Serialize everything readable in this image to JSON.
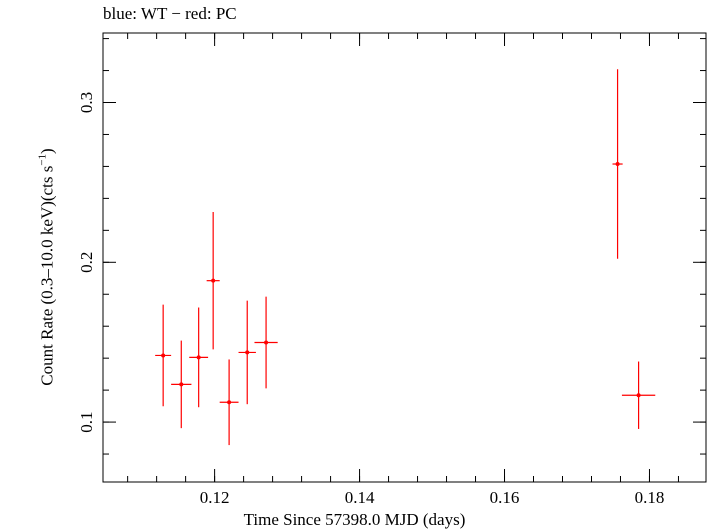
{
  "chart_data": {
    "type": "scatter",
    "title": "blue: WT − red: PC",
    "xlabel": "Time Since 57398.0 MJD (days)",
    "ylabel_main": "Count Rate (0.3–10.0 keV)(cts s",
    "ylabel_sup": "−1",
    "ylabel_end": ")",
    "xlim": [
      0.1046,
      0.1878
    ],
    "ylim": [
      0.0625,
      0.3435
    ],
    "x_ticks": [
      {
        "value": 0.12,
        "label": "0.12"
      },
      {
        "value": 0.14,
        "label": "0.14"
      },
      {
        "value": 0.16,
        "label": "0.16"
      },
      {
        "value": 0.18,
        "label": "0.18"
      }
    ],
    "y_ticks": [
      {
        "value": 0.1,
        "label": "0.1"
      },
      {
        "value": 0.2,
        "label": "0.2"
      },
      {
        "value": 0.3,
        "label": "0.3"
      }
    ],
    "series": [
      {
        "color": "#ff0000",
        "points": [
          {
            "x": 0.1129,
            "xerr": 0.0011,
            "y": 0.1417,
            "yerr": 0.0318
          },
          {
            "x": 0.1154,
            "xerr": 0.0014,
            "y": 0.1236,
            "yerr": 0.0274
          },
          {
            "x": 0.1178,
            "xerr": 0.0013,
            "y": 0.1405,
            "yerr": 0.0312
          },
          {
            "x": 0.1198,
            "xerr": 0.0009,
            "y": 0.1885,
            "yerr": 0.043
          },
          {
            "x": 0.122,
            "xerr": 0.0013,
            "y": 0.1124,
            "yerr": 0.0268
          },
          {
            "x": 0.1245,
            "xerr": 0.0012,
            "y": 0.1436,
            "yerr": 0.0324
          },
          {
            "x": 0.1271,
            "xerr": 0.0016,
            "y": 0.1498,
            "yerr": 0.0287
          },
          {
            "x": 0.1756,
            "xerr": 0.0007,
            "y": 0.2615,
            "yerr": 0.0593
          },
          {
            "x": 0.1785,
            "xerr": 0.0023,
            "y": 0.1168,
            "yerr": 0.0211
          }
        ]
      }
    ]
  }
}
